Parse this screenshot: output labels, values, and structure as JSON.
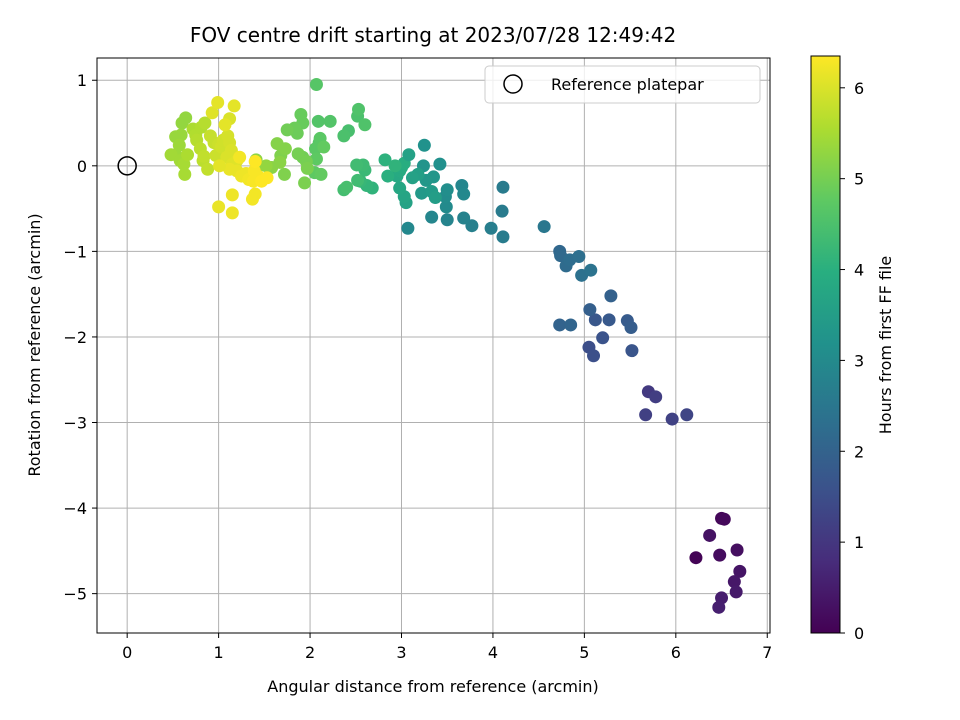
{
  "chart_data": {
    "type": "scatter",
    "title": "FOV centre drift starting at 2023/07/28 12:49:42",
    "xlabel": "Angular distance from reference (arcmin)",
    "ylabel": "Rotation from reference (arcmin)",
    "xlim": [
      -0.33,
      7.03
    ],
    "ylim": [
      -5.46,
      1.26
    ],
    "x_ticks": [
      0,
      1,
      2,
      3,
      4,
      5,
      6,
      7
    ],
    "y_ticks": [
      1,
      0,
      -1,
      -2,
      -3,
      -4,
      -5
    ],
    "grid": true,
    "legend": {
      "position": "top-right",
      "entries": [
        "Reference platepar"
      ]
    },
    "reference_point": {
      "name": "Reference platepar",
      "x": 0,
      "y": 0
    },
    "colorbar": {
      "label": "Hours from first FF file",
      "colormap": "viridis",
      "range": [
        0,
        6.35
      ],
      "ticks": [
        0,
        1,
        2,
        3,
        4,
        5,
        6
      ]
    },
    "points": [
      {
        "x": 6.5,
        "y": -4.12,
        "c": 0.1
      },
      {
        "x": 6.53,
        "y": -4.13,
        "c": 0.15
      },
      {
        "x": 6.37,
        "y": -4.32,
        "c": 0.3
      },
      {
        "x": 6.22,
        "y": -4.58,
        "c": 0.05
      },
      {
        "x": 6.48,
        "y": -4.55,
        "c": 0.2
      },
      {
        "x": 6.67,
        "y": -4.49,
        "c": 0.25
      },
      {
        "x": 6.7,
        "y": -4.74,
        "c": 0.35
      },
      {
        "x": 6.64,
        "y": -4.86,
        "c": 0.4
      },
      {
        "x": 6.66,
        "y": -4.98,
        "c": 0.45
      },
      {
        "x": 6.5,
        "y": -5.05,
        "c": 0.5
      },
      {
        "x": 6.47,
        "y": -5.16,
        "c": 0.55
      },
      {
        "x": 5.7,
        "y": -2.64,
        "c": 1.05
      },
      {
        "x": 5.78,
        "y": -2.7,
        "c": 1.15
      },
      {
        "x": 5.67,
        "y": -2.91,
        "c": 1.2
      },
      {
        "x": 5.96,
        "y": -2.96,
        "c": 1.25
      },
      {
        "x": 6.12,
        "y": -2.91,
        "c": 1.3
      },
      {
        "x": 5.05,
        "y": -2.12,
        "c": 1.5
      },
      {
        "x": 5.1,
        "y": -2.22,
        "c": 1.55
      },
      {
        "x": 5.2,
        "y": -2.01,
        "c": 1.6
      },
      {
        "x": 5.52,
        "y": -2.16,
        "c": 1.65
      },
      {
        "x": 5.12,
        "y": -1.8,
        "c": 1.7
      },
      {
        "x": 5.27,
        "y": -1.8,
        "c": 1.75
      },
      {
        "x": 5.47,
        "y": -1.81,
        "c": 1.8
      },
      {
        "x": 5.51,
        "y": -1.89,
        "c": 1.85
      },
      {
        "x": 5.06,
        "y": -1.68,
        "c": 1.9
      },
      {
        "x": 5.29,
        "y": -1.52,
        "c": 1.95
      },
      {
        "x": 4.73,
        "y": -1.86,
        "c": 2.0
      },
      {
        "x": 4.85,
        "y": -1.86,
        "c": 2.05
      },
      {
        "x": 4.73,
        "y": -1.0,
        "c": 2.1
      },
      {
        "x": 4.74,
        "y": -1.05,
        "c": 2.15
      },
      {
        "x": 4.8,
        "y": -1.17,
        "c": 2.2
      },
      {
        "x": 4.84,
        "y": -1.1,
        "c": 2.25
      },
      {
        "x": 4.94,
        "y": -1.06,
        "c": 2.3
      },
      {
        "x": 4.97,
        "y": -1.28,
        "c": 2.35
      },
      {
        "x": 5.07,
        "y": -1.22,
        "c": 2.4
      },
      {
        "x": 4.56,
        "y": -0.71,
        "c": 2.5
      },
      {
        "x": 4.1,
        "y": -0.53,
        "c": 2.6
      },
      {
        "x": 4.11,
        "y": -0.83,
        "c": 2.65
      },
      {
        "x": 3.98,
        "y": -0.73,
        "c": 2.7
      },
      {
        "x": 3.77,
        "y": -0.7,
        "c": 2.75
      },
      {
        "x": 3.68,
        "y": -0.61,
        "c": 2.8
      },
      {
        "x": 3.5,
        "y": -0.63,
        "c": 2.85
      },
      {
        "x": 3.33,
        "y": -0.6,
        "c": 2.9
      },
      {
        "x": 3.07,
        "y": -0.73,
        "c": 2.95
      },
      {
        "x": 4.11,
        "y": -0.25,
        "c": 2.6
      },
      {
        "x": 3.66,
        "y": -0.23,
        "c": 2.9
      },
      {
        "x": 3.68,
        "y": -0.33,
        "c": 2.95
      },
      {
        "x": 3.49,
        "y": -0.48,
        "c": 3.0
      },
      {
        "x": 3.48,
        "y": -0.36,
        "c": 3.05
      },
      {
        "x": 3.5,
        "y": -0.28,
        "c": 3.1
      },
      {
        "x": 3.42,
        "y": 0.02,
        "c": 3.15
      },
      {
        "x": 3.25,
        "y": 0.24,
        "c": 3.2
      },
      {
        "x": 3.24,
        "y": 0.0,
        "c": 3.25
      },
      {
        "x": 3.35,
        "y": -0.13,
        "c": 3.3
      },
      {
        "x": 3.27,
        "y": -0.17,
        "c": 3.35
      },
      {
        "x": 3.22,
        "y": -0.32,
        "c": 3.4
      },
      {
        "x": 3.33,
        "y": -0.3,
        "c": 3.45
      },
      {
        "x": 3.37,
        "y": -0.37,
        "c": 3.5
      },
      {
        "x": 3.18,
        "y": -0.1,
        "c": 3.55
      },
      {
        "x": 3.12,
        "y": -0.14,
        "c": 3.6
      },
      {
        "x": 3.05,
        "y": -0.43,
        "c": 3.65
      },
      {
        "x": 3.03,
        "y": -0.36,
        "c": 3.7
      },
      {
        "x": 2.98,
        "y": -0.26,
        "c": 3.75
      },
      {
        "x": 2.95,
        "y": -0.12,
        "c": 3.8
      },
      {
        "x": 2.98,
        "y": -0.06,
        "c": 3.85
      },
      {
        "x": 3.0,
        "y": -0.02,
        "c": 3.9
      },
      {
        "x": 3.03,
        "y": 0.03,
        "c": 3.95
      },
      {
        "x": 3.08,
        "y": 0.13,
        "c": 3.6
      },
      {
        "x": 2.85,
        "y": -0.12,
        "c": 4.0
      },
      {
        "x": 2.82,
        "y": 0.07,
        "c": 4.05
      },
      {
        "x": 2.93,
        "y": 0.0,
        "c": 4.1
      },
      {
        "x": 2.68,
        "y": -0.26,
        "c": 4.1
      },
      {
        "x": 2.62,
        "y": -0.23,
        "c": 4.15
      },
      {
        "x": 2.55,
        "y": -0.18,
        "c": 4.2
      },
      {
        "x": 2.6,
        "y": -0.05,
        "c": 4.25
      },
      {
        "x": 2.58,
        "y": 0.01,
        "c": 4.3
      },
      {
        "x": 2.51,
        "y": 0.01,
        "c": 4.35
      },
      {
        "x": 2.52,
        "y": -0.17,
        "c": 4.35
      },
      {
        "x": 2.37,
        "y": -0.28,
        "c": 4.4
      },
      {
        "x": 2.4,
        "y": -0.25,
        "c": 4.45
      },
      {
        "x": 2.42,
        "y": 0.41,
        "c": 4.45
      },
      {
        "x": 2.37,
        "y": 0.35,
        "c": 4.5
      },
      {
        "x": 2.52,
        "y": 0.58,
        "c": 4.5
      },
      {
        "x": 2.53,
        "y": 0.66,
        "c": 4.55
      },
      {
        "x": 2.6,
        "y": 0.48,
        "c": 4.55
      },
      {
        "x": 2.22,
        "y": 0.52,
        "c": 4.6
      },
      {
        "x": 2.09,
        "y": 0.52,
        "c": 4.6
      },
      {
        "x": 2.07,
        "y": 0.95,
        "c": 4.65
      },
      {
        "x": 2.1,
        "y": 0.27,
        "c": 4.65
      },
      {
        "x": 2.06,
        "y": 0.2,
        "c": 4.7
      },
      {
        "x": 2.11,
        "y": 0.32,
        "c": 4.7
      },
      {
        "x": 2.07,
        "y": 0.08,
        "c": 4.75
      },
      {
        "x": 2.05,
        "y": -0.08,
        "c": 4.75
      },
      {
        "x": 2.12,
        "y": -0.1,
        "c": 4.8
      },
      {
        "x": 2.15,
        "y": 0.22,
        "c": 4.8
      },
      {
        "x": 1.9,
        "y": 0.6,
        "c": 4.85
      },
      {
        "x": 1.92,
        "y": 0.5,
        "c": 4.85
      },
      {
        "x": 1.86,
        "y": 0.38,
        "c": 4.9
      },
      {
        "x": 1.83,
        "y": 0.44,
        "c": 4.9
      },
      {
        "x": 1.75,
        "y": 0.42,
        "c": 4.95
      },
      {
        "x": 1.92,
        "y": 0.1,
        "c": 4.95
      },
      {
        "x": 1.87,
        "y": 0.14,
        "c": 5.0
      },
      {
        "x": 1.96,
        "y": 0.05,
        "c": 5.0
      },
      {
        "x": 1.97,
        "y": -0.03,
        "c": 5.05
      },
      {
        "x": 1.94,
        "y": -0.2,
        "c": 5.05
      },
      {
        "x": 1.72,
        "y": -0.1,
        "c": 5.1
      },
      {
        "x": 1.68,
        "y": 0.12,
        "c": 5.1
      },
      {
        "x": 1.64,
        "y": 0.26,
        "c": 5.15
      },
      {
        "x": 1.73,
        "y": 0.2,
        "c": 5.15
      },
      {
        "x": 1.67,
        "y": 0.04,
        "c": 5.2
      },
      {
        "x": 1.58,
        "y": -0.02,
        "c": 5.2
      },
      {
        "x": 1.41,
        "y": 0.07,
        "c": 5.25
      },
      {
        "x": 1.44,
        "y": 0.0,
        "c": 5.25
      },
      {
        "x": 1.52,
        "y": 0.0,
        "c": 5.3
      },
      {
        "x": 0.6,
        "y": 0.5,
        "c": 5.3
      },
      {
        "x": 0.64,
        "y": 0.56,
        "c": 5.3
      },
      {
        "x": 0.53,
        "y": 0.34,
        "c": 5.35
      },
      {
        "x": 0.59,
        "y": 0.36,
        "c": 5.35
      },
      {
        "x": 0.57,
        "y": 0.24,
        "c": 5.4
      },
      {
        "x": 0.53,
        "y": 0.13,
        "c": 5.4
      },
      {
        "x": 0.48,
        "y": 0.13,
        "c": 5.45
      },
      {
        "x": 0.58,
        "y": 0.06,
        "c": 5.45
      },
      {
        "x": 0.63,
        "y": -0.1,
        "c": 5.5
      },
      {
        "x": 0.62,
        "y": 0.02,
        "c": 5.5
      },
      {
        "x": 0.66,
        "y": 0.13,
        "c": 5.55
      },
      {
        "x": 0.72,
        "y": 0.43,
        "c": 5.55
      },
      {
        "x": 0.75,
        "y": 0.36,
        "c": 5.6
      },
      {
        "x": 0.81,
        "y": 0.45,
        "c": 5.6
      },
      {
        "x": 0.85,
        "y": 0.5,
        "c": 5.65
      },
      {
        "x": 0.76,
        "y": 0.3,
        "c": 5.65
      },
      {
        "x": 0.8,
        "y": 0.2,
        "c": 5.7
      },
      {
        "x": 0.83,
        "y": 0.06,
        "c": 5.7
      },
      {
        "x": 0.88,
        "y": -0.04,
        "c": 5.75
      },
      {
        "x": 0.84,
        "y": 0.11,
        "c": 5.75
      },
      {
        "x": 0.91,
        "y": 0.35,
        "c": 5.8
      },
      {
        "x": 0.95,
        "y": 0.27,
        "c": 5.8
      },
      {
        "x": 1.0,
        "y": 0.25,
        "c": 5.85
      },
      {
        "x": 0.97,
        "y": 0.12,
        "c": 5.85
      },
      {
        "x": 1.03,
        "y": 0.22,
        "c": 5.9
      },
      {
        "x": 1.05,
        "y": 0.3,
        "c": 5.9
      },
      {
        "x": 1.1,
        "y": 0.35,
        "c": 5.95
      },
      {
        "x": 1.12,
        "y": 0.27,
        "c": 5.95
      },
      {
        "x": 1.14,
        "y": 0.18,
        "c": 6.0
      },
      {
        "x": 1.09,
        "y": 0.1,
        "c": 6.0
      },
      {
        "x": 1.15,
        "y": 0.02,
        "c": 6.05
      },
      {
        "x": 1.2,
        "y": 0.06,
        "c": 6.05
      },
      {
        "x": 1.12,
        "y": 0.55,
        "c": 6.0
      },
      {
        "x": 0.93,
        "y": 0.62,
        "c": 6.05
      },
      {
        "x": 0.99,
        "y": 0.74,
        "c": 6.1
      },
      {
        "x": 1.17,
        "y": 0.7,
        "c": 6.1
      },
      {
        "x": 1.07,
        "y": 0.48,
        "c": 6.1
      },
      {
        "x": 1.12,
        "y": -0.04,
        "c": 6.15
      },
      {
        "x": 1.2,
        "y": -0.06,
        "c": 6.15
      },
      {
        "x": 1.25,
        "y": -0.12,
        "c": 6.2
      },
      {
        "x": 1.3,
        "y": -0.09,
        "c": 6.2
      },
      {
        "x": 1.23,
        "y": 0.1,
        "c": 6.25
      },
      {
        "x": 1.33,
        "y": -0.16,
        "c": 6.25
      },
      {
        "x": 1.38,
        "y": -0.18,
        "c": 6.3
      },
      {
        "x": 1.43,
        "y": -0.12,
        "c": 6.3
      },
      {
        "x": 1.39,
        "y": -0.06,
        "c": 6.3
      },
      {
        "x": 1.47,
        "y": -0.18,
        "c": 6.35
      },
      {
        "x": 1.53,
        "y": -0.14,
        "c": 6.35
      },
      {
        "x": 1.4,
        "y": 0.05,
        "c": 6.35
      },
      {
        "x": 1.0,
        "y": -0.48,
        "c": 6.15
      },
      {
        "x": 1.15,
        "y": -0.55,
        "c": 6.2
      },
      {
        "x": 1.15,
        "y": -0.34,
        "c": 6.2
      },
      {
        "x": 1.4,
        "y": -0.33,
        "c": 6.25
      },
      {
        "x": 1.37,
        "y": -0.39,
        "c": 6.25
      },
      {
        "x": 1.01,
        "y": 0.0,
        "c": 6.1
      }
    ]
  }
}
